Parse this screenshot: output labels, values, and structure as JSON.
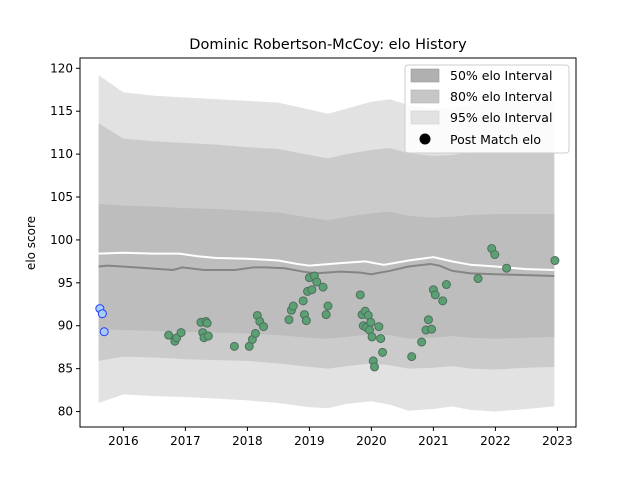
{
  "chart_data": {
    "type": "area",
    "title": "Dominic Robertson-McCoy: elo History",
    "xlabel": "",
    "ylabel": "elo score",
    "xlim": [
      2015.3,
      2023.3
    ],
    "ylim": [
      78.2,
      121.2
    ],
    "xticks": [
      2016,
      2017,
      2018,
      2019,
      2020,
      2021,
      2022,
      2023
    ],
    "yticks": [
      80,
      85,
      90,
      95,
      100,
      105,
      110,
      115,
      120
    ],
    "grid": false,
    "legend": {
      "placement": "top-right",
      "entries": [
        {
          "label": "50% elo Interval",
          "color": "#b0b0b0",
          "kind": "patch"
        },
        {
          "label": "80% elo Interval",
          "color": "#c6c6c6",
          "kind": "patch"
        },
        {
          "label": "95% elo Interval",
          "color": "#e2e2e2",
          "kind": "patch"
        },
        {
          "label": "Post Match elo",
          "color": "#000000",
          "kind": "marker"
        }
      ]
    },
    "colors": {
      "band95": "#e2e2e2",
      "band80": "#cbcbcb",
      "band50": "#bdbdbd",
      "mean_line": "#ffffff",
      "median_line": "#858585",
      "match_fill": "#5aa073",
      "match_edge": "#4f6f5e",
      "early_fill": "#a9cdf6",
      "early_edge": "#1f3cff"
    },
    "bands": {
      "x": [
        2015.6,
        2016.0,
        2016.5,
        2017.0,
        2017.5,
        2018.0,
        2018.5,
        2019.0,
        2019.3,
        2019.6,
        2020.0,
        2020.3,
        2020.6,
        2021.0,
        2021.3,
        2021.6,
        2022.0,
        2022.5,
        2022.95
      ],
      "b95_upper": [
        119.2,
        117.2,
        116.8,
        116.6,
        116.4,
        116.2,
        116.0,
        115.2,
        114.7,
        115.3,
        116.1,
        116.4,
        115.7,
        115.3,
        115.4,
        115.8,
        116.2,
        116.3,
        116.4
      ],
      "b95_lower": [
        81.0,
        82.0,
        81.8,
        81.7,
        81.5,
        81.3,
        81.0,
        80.5,
        80.4,
        80.9,
        81.2,
        80.8,
        80.1,
        80.3,
        80.6,
        80.2,
        80.0,
        80.3,
        80.6
      ],
      "b80_upper": [
        113.6,
        111.8,
        111.5,
        111.3,
        111.1,
        110.8,
        110.6,
        109.9,
        109.5,
        110.0,
        110.5,
        110.7,
        110.1,
        109.8,
        109.9,
        110.2,
        110.3,
        110.3,
        110.3
      ],
      "b80_lower": [
        85.9,
        86.4,
        86.3,
        86.1,
        86.0,
        85.9,
        85.6,
        85.2,
        85.0,
        85.3,
        85.6,
        85.4,
        85.0,
        85.1,
        85.3,
        85.0,
        84.9,
        85.1,
        85.2
      ],
      "b50_upper": [
        104.2,
        104.0,
        103.9,
        103.7,
        103.6,
        103.4,
        103.2,
        102.6,
        102.3,
        102.7,
        103.1,
        103.3,
        102.8,
        102.6,
        102.7,
        102.9,
        103.0,
        103.0,
        103.0
      ],
      "b50_lower": [
        89.6,
        89.5,
        89.4,
        89.3,
        89.2,
        89.1,
        88.9,
        88.6,
        88.5,
        88.7,
        89.0,
        88.9,
        88.5,
        88.6,
        88.8,
        88.6,
        88.5,
        88.6,
        88.7
      ]
    },
    "mean_line": {
      "x": [
        2015.6,
        2016.0,
        2016.5,
        2016.9,
        2017.2,
        2017.5,
        2018.0,
        2018.5,
        2018.8,
        2019.0,
        2019.5,
        2019.9,
        2020.2,
        2020.6,
        2021.0,
        2021.3,
        2021.6,
        2022.0,
        2022.5,
        2022.95
      ],
      "y": [
        98.4,
        98.5,
        98.4,
        98.4,
        98.1,
        97.9,
        97.8,
        97.6,
        97.2,
        97.0,
        97.3,
        97.5,
        97.1,
        97.6,
        98.0,
        97.5,
        97.1,
        96.9,
        96.6,
        96.5
      ]
    },
    "median_line": {
      "x": [
        2015.6,
        2015.75,
        2016.2,
        2016.8,
        2016.95,
        2017.3,
        2017.8,
        2018.1,
        2018.3,
        2018.6,
        2018.9,
        2019.1,
        2019.5,
        2019.8,
        2020.0,
        2020.3,
        2020.6,
        2020.95,
        2021.1,
        2021.3,
        2021.6,
        2022.0,
        2022.5,
        2022.95
      ],
      "y": [
        96.9,
        97.0,
        96.8,
        96.5,
        96.8,
        96.5,
        96.5,
        96.8,
        96.8,
        96.7,
        96.3,
        96.1,
        96.3,
        96.2,
        96.0,
        96.4,
        96.9,
        97.2,
        97.0,
        96.4,
        96.1,
        96.0,
        95.9,
        95.8
      ]
    },
    "early_points": {
      "x": [
        2015.62,
        2015.66,
        2015.69
      ],
      "y": [
        92.0,
        91.4,
        89.3
      ]
    },
    "match_points": {
      "x": [
        2016.73,
        2016.83,
        2016.86,
        2016.93,
        2017.25,
        2017.28,
        2017.3,
        2017.33,
        2017.35,
        2017.37,
        2017.79,
        2018.03,
        2018.08,
        2018.13,
        2018.16,
        2018.2,
        2018.26,
        2018.67,
        2018.71,
        2018.74,
        2018.9,
        2018.92,
        2018.95,
        2018.97,
        2019.0,
        2019.04,
        2019.08,
        2019.12,
        2019.22,
        2019.27,
        2019.3,
        2019.82,
        2019.85,
        2019.87,
        2019.9,
        2019.92,
        2019.95,
        2019.97,
        2019.99,
        2020.01,
        2020.03,
        2020.05,
        2020.12,
        2020.15,
        2020.18,
        2020.65,
        2020.81,
        2020.88,
        2020.92,
        2020.97,
        2021.0,
        2021.03,
        2021.15,
        2021.21,
        2021.72,
        2021.94,
        2021.99,
        2022.18,
        2022.96
      ],
      "y": [
        88.9,
        88.2,
        88.6,
        89.2,
        90.4,
        89.2,
        88.6,
        90.5,
        90.3,
        88.8,
        87.6,
        87.6,
        88.4,
        89.1,
        91.2,
        90.5,
        89.9,
        90.7,
        91.8,
        92.3,
        92.9,
        91.3,
        90.6,
        94.0,
        95.6,
        94.2,
        95.8,
        95.1,
        94.5,
        91.3,
        92.3,
        93.6,
        91.3,
        90.0,
        91.7,
        89.8,
        91.2,
        89.5,
        90.4,
        88.7,
        85.9,
        85.2,
        89.9,
        88.5,
        86.9,
        86.4,
        88.1,
        89.5,
        90.7,
        89.6,
        94.2,
        93.6,
        92.9,
        94.8,
        95.5,
        99.0,
        98.3,
        96.7,
        97.6
      ]
    }
  }
}
